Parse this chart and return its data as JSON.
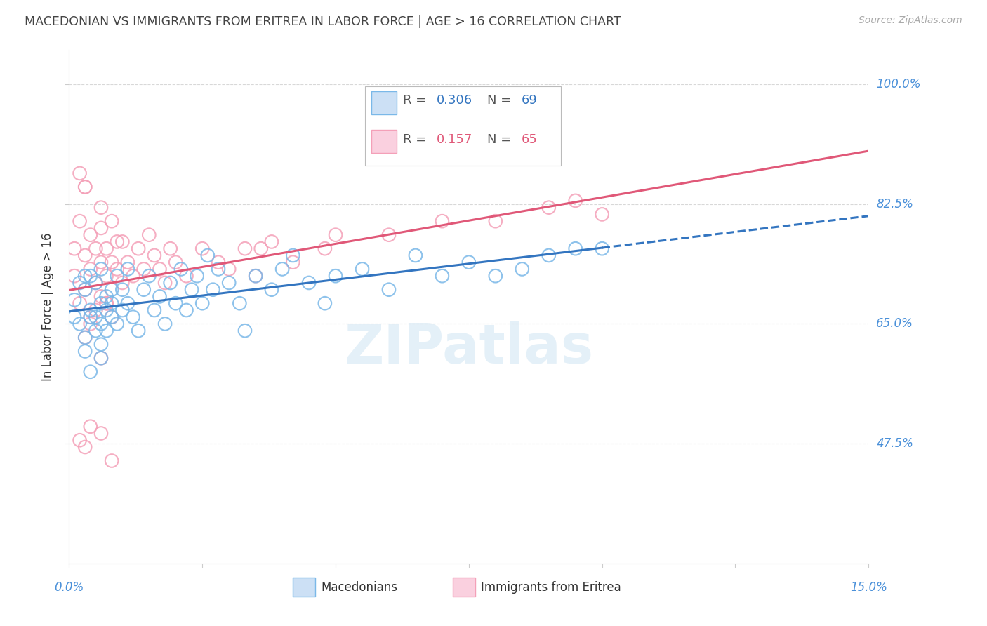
{
  "title": "MACEDONIAN VS IMMIGRANTS FROM ERITREA IN LABOR FORCE | AGE > 16 CORRELATION CHART",
  "source": "Source: ZipAtlas.com",
  "ylabel": "In Labor Force | Age > 16",
  "xlim": [
    0.0,
    0.15
  ],
  "ylim": [
    0.3,
    1.05
  ],
  "yticks": [
    0.475,
    0.65,
    0.825,
    1.0
  ],
  "ytick_labels": [
    "47.5%",
    "65.0%",
    "82.5%",
    "100.0%"
  ],
  "xtick_labels": [
    "0.0%",
    "15.0%"
  ],
  "blue_R": 0.306,
  "blue_N": 69,
  "pink_R": 0.157,
  "pink_N": 65,
  "blue_color": "#7ab8e8",
  "pink_color": "#f4a0b8",
  "trend_blue_color": "#3375c0",
  "trend_pink_color": "#e05878",
  "legend_label_blue": "Macedonians",
  "legend_label_pink": "Immigrants from Eritrea",
  "watermark": "ZIPatlas",
  "blue_scatter_x": [
    0.001,
    0.001,
    0.002,
    0.002,
    0.003,
    0.003,
    0.003,
    0.004,
    0.004,
    0.004,
    0.005,
    0.005,
    0.005,
    0.006,
    0.006,
    0.006,
    0.006,
    0.007,
    0.007,
    0.007,
    0.008,
    0.008,
    0.008,
    0.009,
    0.009,
    0.01,
    0.01,
    0.011,
    0.011,
    0.012,
    0.013,
    0.014,
    0.015,
    0.016,
    0.017,
    0.018,
    0.019,
    0.02,
    0.021,
    0.022,
    0.023,
    0.024,
    0.025,
    0.026,
    0.027,
    0.028,
    0.03,
    0.032,
    0.033,
    0.035,
    0.038,
    0.04,
    0.042,
    0.045,
    0.048,
    0.05,
    0.055,
    0.06,
    0.065,
    0.07,
    0.075,
    0.08,
    0.085,
    0.09,
    0.095,
    0.1,
    0.003,
    0.004,
    0.006
  ],
  "blue_scatter_y": [
    0.685,
    0.66,
    0.65,
    0.71,
    0.7,
    0.63,
    0.72,
    0.67,
    0.72,
    0.66,
    0.66,
    0.64,
    0.71,
    0.68,
    0.65,
    0.73,
    0.62,
    0.67,
    0.69,
    0.64,
    0.7,
    0.66,
    0.68,
    0.72,
    0.65,
    0.7,
    0.67,
    0.73,
    0.68,
    0.66,
    0.64,
    0.7,
    0.72,
    0.67,
    0.69,
    0.65,
    0.71,
    0.68,
    0.73,
    0.67,
    0.7,
    0.72,
    0.68,
    0.75,
    0.7,
    0.73,
    0.71,
    0.68,
    0.64,
    0.72,
    0.7,
    0.73,
    0.75,
    0.71,
    0.68,
    0.72,
    0.73,
    0.7,
    0.75,
    0.72,
    0.74,
    0.72,
    0.73,
    0.75,
    0.76,
    0.76,
    0.61,
    0.58,
    0.6
  ],
  "pink_scatter_x": [
    0.001,
    0.001,
    0.002,
    0.002,
    0.003,
    0.003,
    0.003,
    0.004,
    0.004,
    0.004,
    0.005,
    0.005,
    0.006,
    0.006,
    0.006,
    0.007,
    0.007,
    0.007,
    0.008,
    0.008,
    0.009,
    0.009,
    0.01,
    0.01,
    0.011,
    0.012,
    0.013,
    0.014,
    0.015,
    0.016,
    0.017,
    0.018,
    0.019,
    0.02,
    0.022,
    0.025,
    0.028,
    0.03,
    0.033,
    0.038,
    0.042,
    0.048,
    0.05,
    0.06,
    0.07,
    0.08,
    0.09,
    0.095,
    0.1,
    0.002,
    0.003,
    0.004,
    0.005,
    0.006,
    0.007,
    0.008,
    0.035,
    0.036,
    0.002,
    0.003,
    0.004,
    0.006,
    0.008,
    0.003,
    0.006
  ],
  "pink_scatter_y": [
    0.72,
    0.76,
    0.68,
    0.8,
    0.75,
    0.7,
    0.85,
    0.73,
    0.78,
    0.66,
    0.71,
    0.76,
    0.74,
    0.79,
    0.82,
    0.72,
    0.76,
    0.68,
    0.74,
    0.8,
    0.73,
    0.77,
    0.71,
    0.77,
    0.74,
    0.72,
    0.76,
    0.73,
    0.78,
    0.75,
    0.73,
    0.71,
    0.76,
    0.74,
    0.72,
    0.76,
    0.74,
    0.73,
    0.76,
    0.77,
    0.74,
    0.76,
    0.78,
    0.78,
    0.8,
    0.8,
    0.82,
    0.83,
    0.81,
    0.87,
    0.85,
    0.65,
    0.67,
    0.69,
    0.68,
    0.66,
    0.72,
    0.76,
    0.48,
    0.47,
    0.5,
    0.49,
    0.45,
    0.63,
    0.6
  ],
  "bg_color": "#ffffff",
  "grid_color": "#d8d8d8",
  "tick_color": "#4a90d9",
  "title_color": "#444444",
  "ylabel_color": "#333333"
}
